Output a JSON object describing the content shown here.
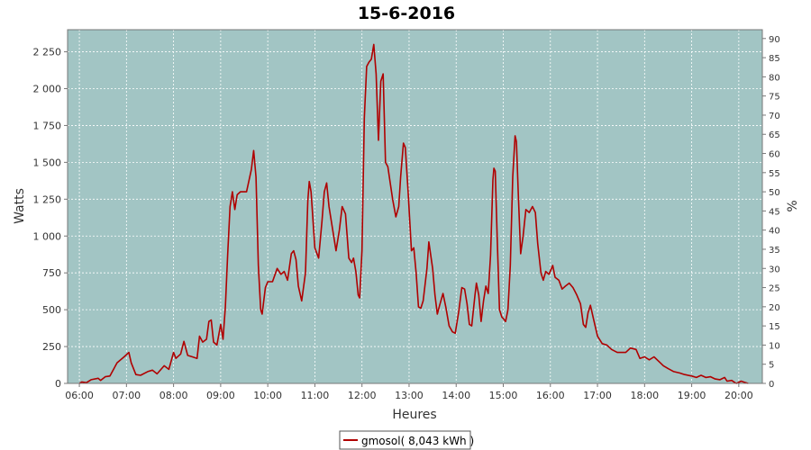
{
  "chart_data": {
    "type": "line",
    "title": "15-6-2016",
    "xlabel": "Heures",
    "ylabel": "Watts",
    "y2label": "%",
    "xlim": [
      5.75,
      20.5
    ],
    "ylim": [
      0,
      2400
    ],
    "y2lim": [
      0,
      92.3
    ],
    "x_ticks": [
      {
        "v": 6,
        "label": "06:00"
      },
      {
        "v": 7,
        "label": "07:00"
      },
      {
        "v": 8,
        "label": "08:00"
      },
      {
        "v": 9,
        "label": "09:00"
      },
      {
        "v": 10,
        "label": "10:00"
      },
      {
        "v": 11,
        "label": "11:00"
      },
      {
        "v": 12,
        "label": "12:00"
      },
      {
        "v": 13,
        "label": "13:00"
      },
      {
        "v": 14,
        "label": "14:00"
      },
      {
        "v": 15,
        "label": "15:00"
      },
      {
        "v": 16,
        "label": "16:00"
      },
      {
        "v": 17,
        "label": "17:00"
      },
      {
        "v": 18,
        "label": "18:00"
      },
      {
        "v": 19,
        "label": "19:00"
      },
      {
        "v": 20,
        "label": "20:00"
      }
    ],
    "y_ticks": [
      {
        "v": 0,
        "label": "0"
      },
      {
        "v": 250,
        "label": "250"
      },
      {
        "v": 500,
        "label": "500"
      },
      {
        "v": 750,
        "label": "750"
      },
      {
        "v": 1000,
        "label": "1 000"
      },
      {
        "v": 1250,
        "label": "1 250"
      },
      {
        "v": 1500,
        "label": "1 500"
      },
      {
        "v": 1750,
        "label": "1 750"
      },
      {
        "v": 2000,
        "label": "2 000"
      },
      {
        "v": 2250,
        "label": "2 250"
      }
    ],
    "y2_ticks": [
      {
        "v": 0,
        "label": "0"
      },
      {
        "v": 5,
        "label": "5"
      },
      {
        "v": 10,
        "label": "10"
      },
      {
        "v": 15,
        "label": "15"
      },
      {
        "v": 20,
        "label": "20"
      },
      {
        "v": 25,
        "label": "25"
      },
      {
        "v": 30,
        "label": "30"
      },
      {
        "v": 35,
        "label": "35"
      },
      {
        "v": 40,
        "label": "40"
      },
      {
        "v": 45,
        "label": "45"
      },
      {
        "v": 50,
        "label": "50"
      },
      {
        "v": 55,
        "label": "55"
      },
      {
        "v": 60,
        "label": "60"
      },
      {
        "v": 65,
        "label": "65"
      },
      {
        "v": 70,
        "label": "70"
      },
      {
        "v": 75,
        "label": "75"
      },
      {
        "v": 80,
        "label": "80"
      },
      {
        "v": 85,
        "label": "85"
      },
      {
        "v": 90,
        "label": "90"
      }
    ],
    "grid": true,
    "legend_position": "bottom-center",
    "colors": {
      "plot_bg": "#a2c5c4",
      "line": "#b00000",
      "grid": "#ffffff"
    },
    "series": [
      {
        "name": "gmosol( 8,043 kWh )",
        "points": [
          [
            6.0,
            0
          ],
          [
            6.05,
            10
          ],
          [
            6.15,
            5
          ],
          [
            6.25,
            25
          ],
          [
            6.4,
            35
          ],
          [
            6.45,
            20
          ],
          [
            6.55,
            45
          ],
          [
            6.65,
            50
          ],
          [
            6.8,
            140
          ],
          [
            6.95,
            180
          ],
          [
            7.05,
            210
          ],
          [
            7.1,
            140
          ],
          [
            7.2,
            60
          ],
          [
            7.3,
            55
          ],
          [
            7.45,
            80
          ],
          [
            7.55,
            90
          ],
          [
            7.65,
            65
          ],
          [
            7.8,
            120
          ],
          [
            7.9,
            95
          ],
          [
            8.0,
            210
          ],
          [
            8.05,
            170
          ],
          [
            8.15,
            200
          ],
          [
            8.22,
            285
          ],
          [
            8.3,
            190
          ],
          [
            8.4,
            180
          ],
          [
            8.5,
            170
          ],
          [
            8.55,
            320
          ],
          [
            8.62,
            280
          ],
          [
            8.7,
            300
          ],
          [
            8.75,
            420
          ],
          [
            8.8,
            430
          ],
          [
            8.85,
            280
          ],
          [
            8.92,
            260
          ],
          [
            9.0,
            400
          ],
          [
            9.05,
            300
          ],
          [
            9.1,
            520
          ],
          [
            9.15,
            880
          ],
          [
            9.2,
            1200
          ],
          [
            9.25,
            1300
          ],
          [
            9.3,
            1180
          ],
          [
            9.35,
            1280
          ],
          [
            9.42,
            1300
          ],
          [
            9.55,
            1300
          ],
          [
            9.65,
            1450
          ],
          [
            9.7,
            1580
          ],
          [
            9.75,
            1400
          ],
          [
            9.8,
            800
          ],
          [
            9.85,
            500
          ],
          [
            9.88,
            470
          ],
          [
            9.95,
            650
          ],
          [
            10.0,
            690
          ],
          [
            10.1,
            690
          ],
          [
            10.2,
            780
          ],
          [
            10.28,
            740
          ],
          [
            10.35,
            760
          ],
          [
            10.42,
            700
          ],
          [
            10.5,
            880
          ],
          [
            10.55,
            900
          ],
          [
            10.6,
            840
          ],
          [
            10.65,
            660
          ],
          [
            10.72,
            560
          ],
          [
            10.8,
            750
          ],
          [
            10.85,
            1240
          ],
          [
            10.88,
            1370
          ],
          [
            10.92,
            1300
          ],
          [
            11.0,
            920
          ],
          [
            11.08,
            850
          ],
          [
            11.15,
            1100
          ],
          [
            11.2,
            1300
          ],
          [
            11.25,
            1360
          ],
          [
            11.3,
            1200
          ],
          [
            11.4,
            1000
          ],
          [
            11.45,
            900
          ],
          [
            11.52,
            1040
          ],
          [
            11.58,
            1200
          ],
          [
            11.65,
            1150
          ],
          [
            11.72,
            850
          ],
          [
            11.78,
            820
          ],
          [
            11.82,
            850
          ],
          [
            11.87,
            760
          ],
          [
            11.92,
            600
          ],
          [
            11.95,
            580
          ],
          [
            12.0,
            900
          ],
          [
            12.05,
            1800
          ],
          [
            12.1,
            2150
          ],
          [
            12.15,
            2180
          ],
          [
            12.2,
            2200
          ],
          [
            12.25,
            2300
          ],
          [
            12.3,
            2100
          ],
          [
            12.35,
            1650
          ],
          [
            12.4,
            2050
          ],
          [
            12.45,
            2100
          ],
          [
            12.5,
            1500
          ],
          [
            12.55,
            1470
          ],
          [
            12.65,
            1250
          ],
          [
            12.72,
            1130
          ],
          [
            12.78,
            1200
          ],
          [
            12.82,
            1400
          ],
          [
            12.88,
            1630
          ],
          [
            12.92,
            1600
          ],
          [
            12.98,
            1300
          ],
          [
            13.05,
            900
          ],
          [
            13.1,
            920
          ],
          [
            13.15,
            750
          ],
          [
            13.2,
            520
          ],
          [
            13.25,
            510
          ],
          [
            13.3,
            560
          ],
          [
            13.38,
            780
          ],
          [
            13.42,
            960
          ],
          [
            13.5,
            780
          ],
          [
            13.55,
            600
          ],
          [
            13.6,
            470
          ],
          [
            13.65,
            530
          ],
          [
            13.72,
            610
          ],
          [
            13.78,
            520
          ],
          [
            13.85,
            390
          ],
          [
            13.92,
            350
          ],
          [
            13.98,
            340
          ],
          [
            14.05,
            480
          ],
          [
            14.12,
            650
          ],
          [
            14.18,
            640
          ],
          [
            14.23,
            540
          ],
          [
            14.28,
            400
          ],
          [
            14.33,
            390
          ],
          [
            14.4,
            600
          ],
          [
            14.43,
            680
          ],
          [
            14.48,
            600
          ],
          [
            14.53,
            420
          ],
          [
            14.58,
            560
          ],
          [
            14.63,
            660
          ],
          [
            14.68,
            610
          ],
          [
            14.73,
            870
          ],
          [
            14.78,
            1380
          ],
          [
            14.8,
            1460
          ],
          [
            14.83,
            1440
          ],
          [
            14.87,
            1000
          ],
          [
            14.92,
            500
          ],
          [
            14.97,
            450
          ],
          [
            15.0,
            440
          ],
          [
            15.05,
            420
          ],
          [
            15.1,
            500
          ],
          [
            15.15,
            800
          ],
          [
            15.2,
            1400
          ],
          [
            15.25,
            1680
          ],
          [
            15.28,
            1640
          ],
          [
            15.32,
            1280
          ],
          [
            15.37,
            880
          ],
          [
            15.42,
            1000
          ],
          [
            15.48,
            1180
          ],
          [
            15.55,
            1160
          ],
          [
            15.62,
            1200
          ],
          [
            15.68,
            1160
          ],
          [
            15.73,
            950
          ],
          [
            15.8,
            750
          ],
          [
            15.85,
            700
          ],
          [
            15.9,
            760
          ],
          [
            15.97,
            740
          ],
          [
            16.05,
            800
          ],
          [
            16.1,
            720
          ],
          [
            16.18,
            700
          ],
          [
            16.25,
            640
          ],
          [
            16.32,
            660
          ],
          [
            16.4,
            680
          ],
          [
            16.48,
            650
          ],
          [
            16.56,
            600
          ],
          [
            16.64,
            540
          ],
          [
            16.7,
            400
          ],
          [
            16.75,
            380
          ],
          [
            16.8,
            480
          ],
          [
            16.85,
            530
          ],
          [
            16.92,
            430
          ],
          [
            17.0,
            320
          ],
          [
            17.1,
            270
          ],
          [
            17.2,
            260
          ],
          [
            17.3,
            230
          ],
          [
            17.42,
            210
          ],
          [
            17.6,
            210
          ],
          [
            17.7,
            240
          ],
          [
            17.82,
            230
          ],
          [
            17.9,
            170
          ],
          [
            18.0,
            180
          ],
          [
            18.1,
            160
          ],
          [
            18.2,
            180
          ],
          [
            18.3,
            150
          ],
          [
            18.4,
            120
          ],
          [
            18.5,
            100
          ],
          [
            18.62,
            80
          ],
          [
            18.75,
            70
          ],
          [
            18.85,
            60
          ],
          [
            19.0,
            50
          ],
          [
            19.1,
            40
          ],
          [
            19.2,
            55
          ],
          [
            19.3,
            40
          ],
          [
            19.4,
            45
          ],
          [
            19.5,
            30
          ],
          [
            19.6,
            25
          ],
          [
            19.7,
            40
          ],
          [
            19.75,
            15
          ],
          [
            19.85,
            20
          ],
          [
            19.92,
            5
          ],
          [
            19.95,
            0
          ],
          [
            20.05,
            15
          ],
          [
            20.12,
            8
          ],
          [
            20.2,
            0
          ]
        ]
      }
    ]
  }
}
